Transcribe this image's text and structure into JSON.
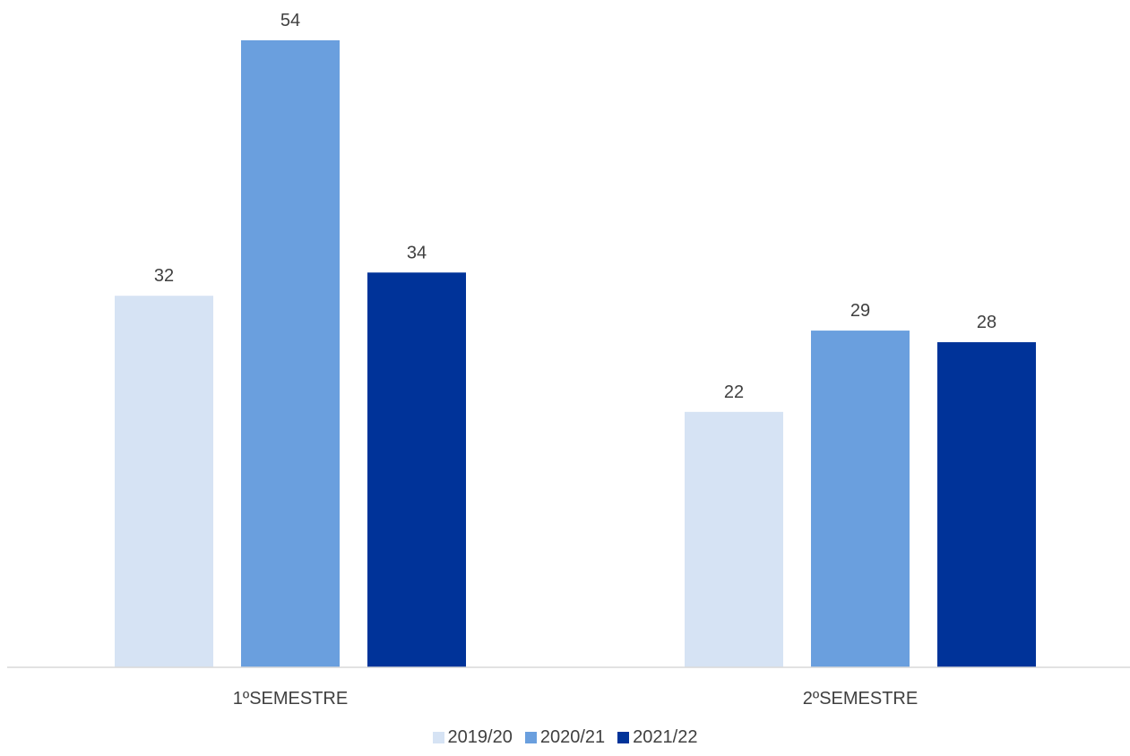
{
  "chart_data": {
    "type": "bar",
    "categories": [
      "1ºSEMESTRE",
      "2ºSEMESTRE"
    ],
    "series": [
      {
        "name": "2019/20",
        "values": [
          32,
          22
        ],
        "color": "#D6E3F4"
      },
      {
        "name": "2020/21",
        "values": [
          54,
          29
        ],
        "color": "#6A9FDE"
      },
      {
        "name": "2021/22",
        "values": [
          34,
          28
        ],
        "color": "#003399"
      }
    ],
    "ylim": [
      0,
      54
    ],
    "grid": false,
    "legend_position": "bottom",
    "data_labels": true,
    "axis_color": "#D9D9D9"
  }
}
